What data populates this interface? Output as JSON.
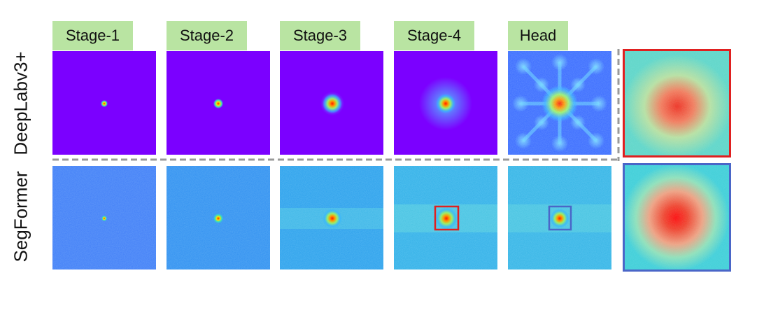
{
  "columns": [
    {
      "label": "Stage-1"
    },
    {
      "label": "Stage-2"
    },
    {
      "label": "Stage-3"
    },
    {
      "label": "Stage-4"
    },
    {
      "label": "Head"
    }
  ],
  "rows": [
    {
      "label": "DeepLabv3+"
    },
    {
      "label": "SegFormer"
    }
  ],
  "colors": {
    "label_bg": "#b9e4a2",
    "deeplab_bg": "#7b00ff",
    "segformer_bg": "#2ea8e6",
    "zoom_box_red": "#e02020",
    "zoom_box_blue": "#4a66c8",
    "divider": "#999999"
  }
}
